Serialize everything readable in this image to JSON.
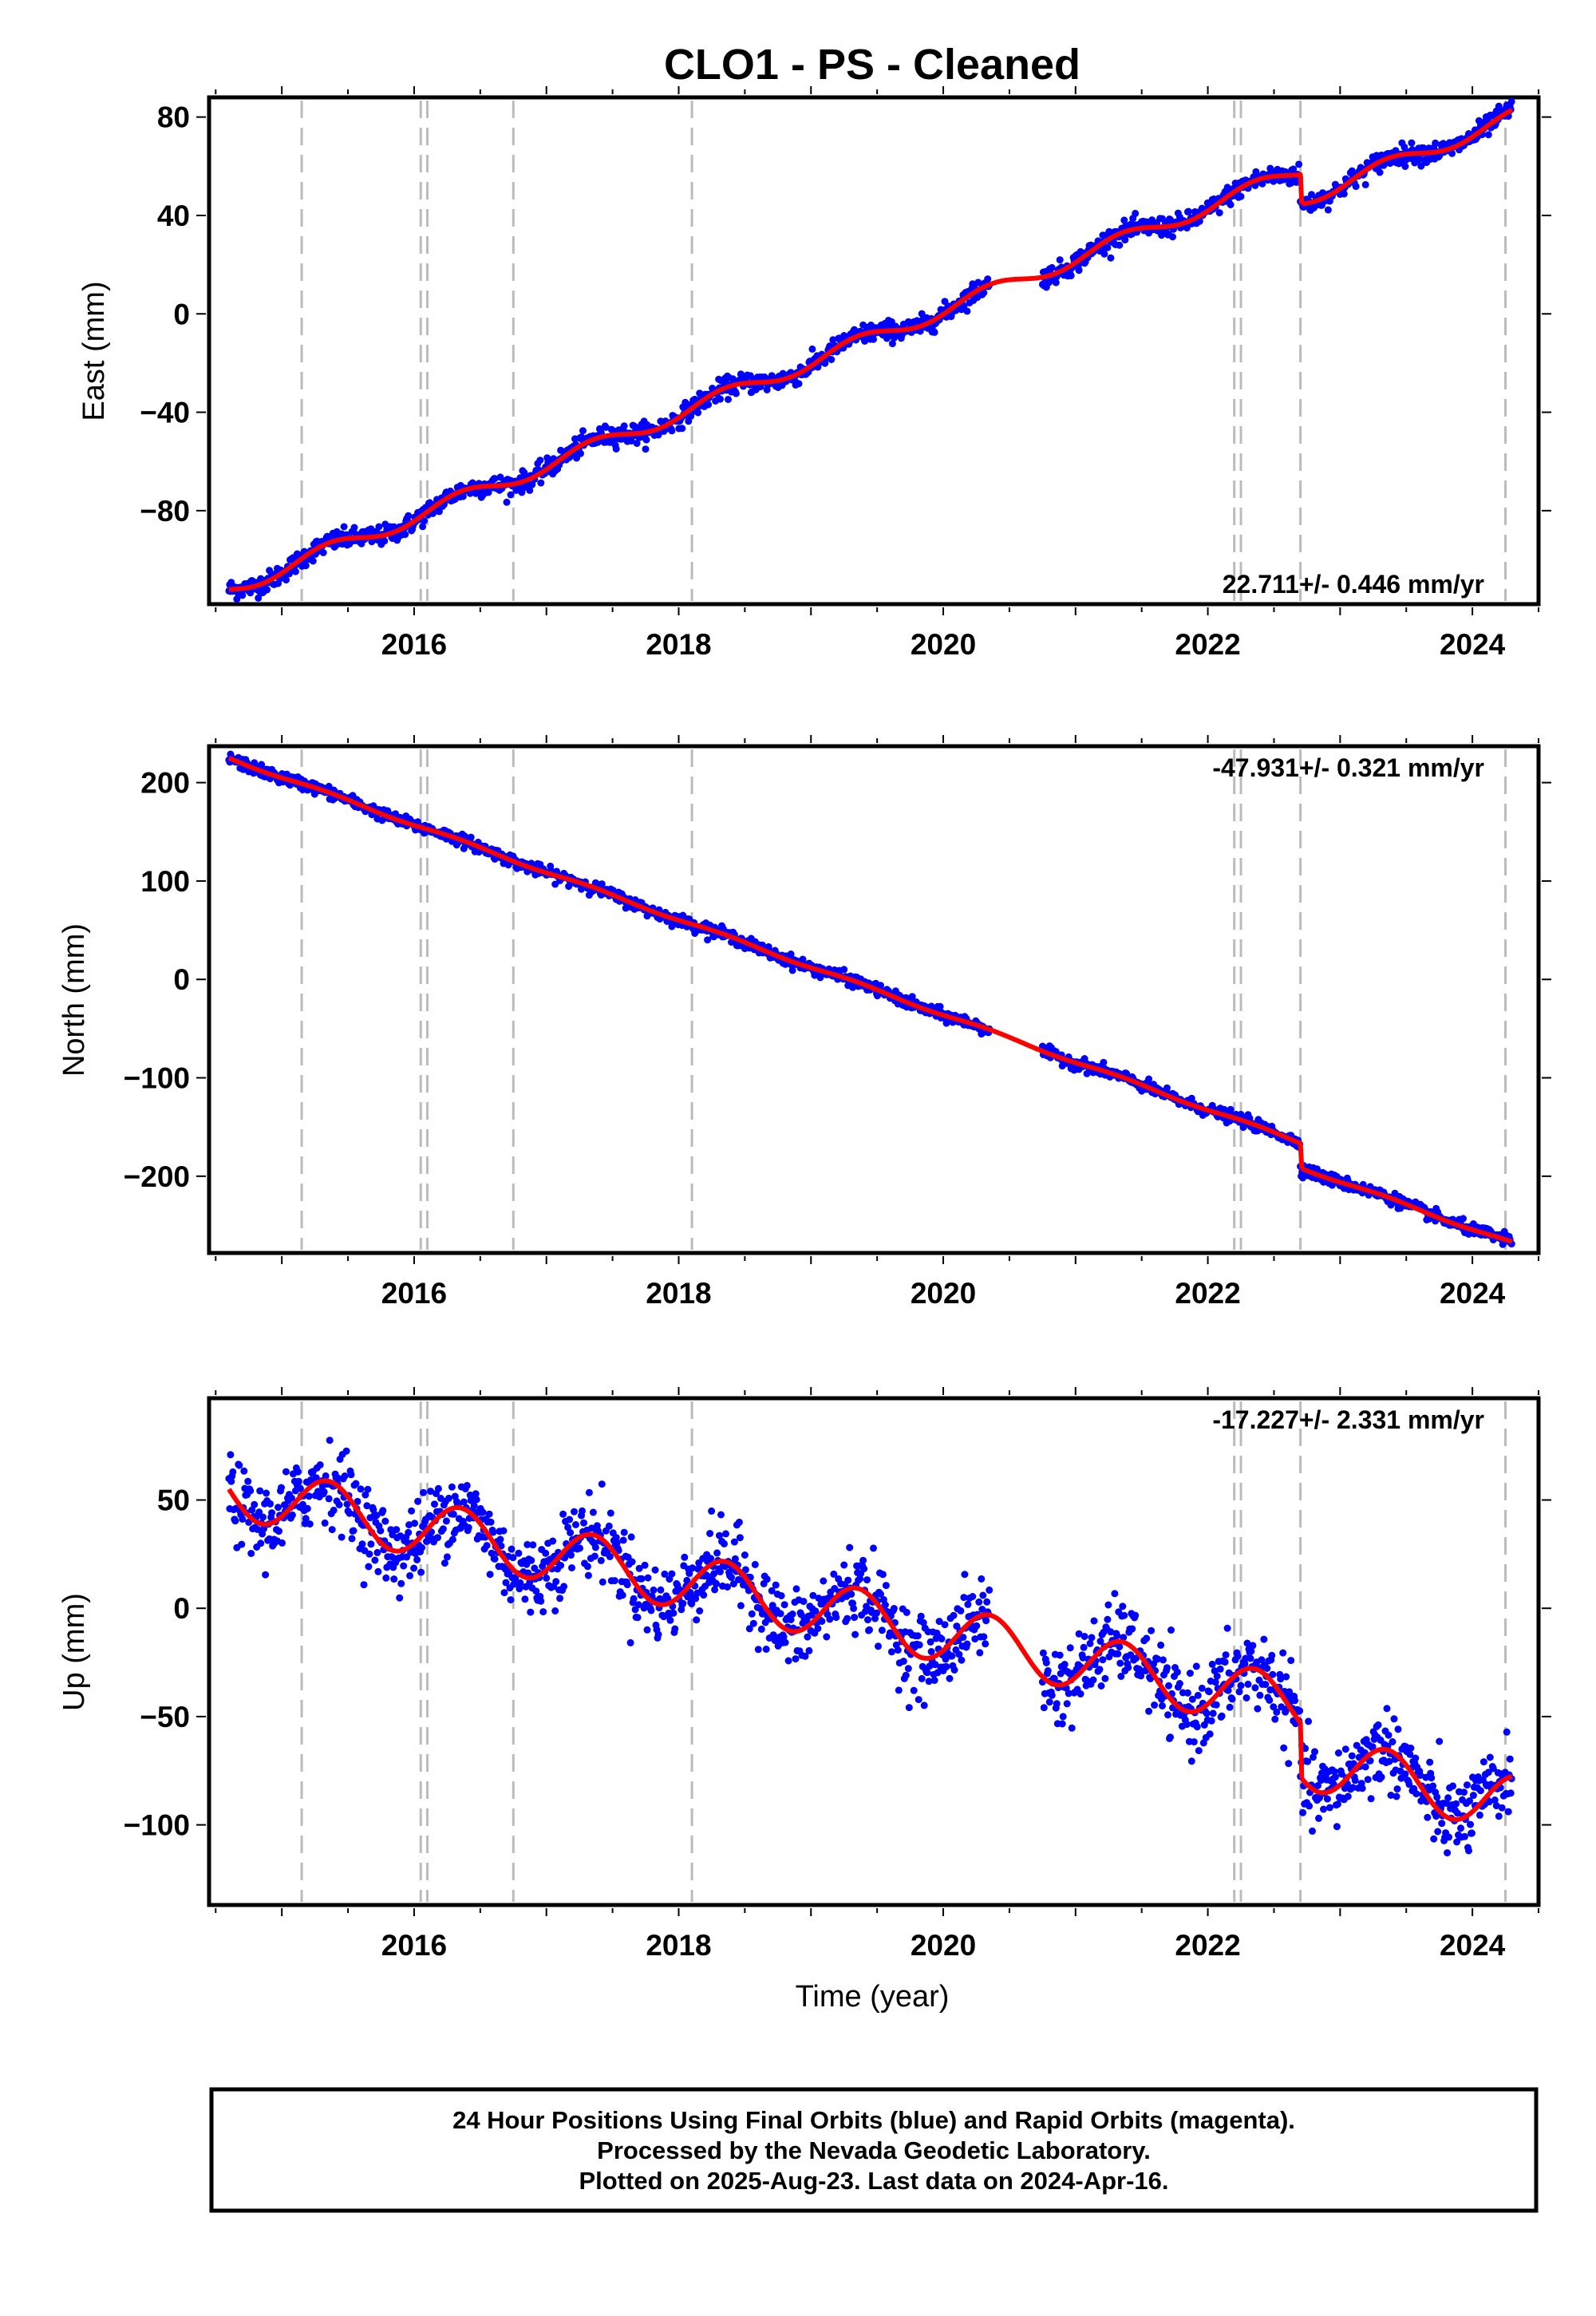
{
  "chart_data": [
    {
      "type": "scatter",
      "title": "CLO1  - PS - Cleaned",
      "ylabel": "East (mm)",
      "xlabel": "",
      "xlim": [
        2014.45,
        2024.5
      ],
      "ylim": [
        -118,
        88
      ],
      "xticks": [
        2016,
        2018,
        2020,
        2022,
        2024
      ],
      "yticks": [
        80,
        40,
        0,
        -40,
        -80
      ],
      "grid": false,
      "rate_label": "22.711+/- 0.446 mm/yr",
      "rate_label_position": "bottom-right",
      "dashed_lines_x": [
        2015.15,
        2016.05,
        2016.1,
        2016.75,
        2018.1,
        2022.2,
        2022.25,
        2022.7,
        2024.25
      ],
      "trend": {
        "start": 2014.6,
        "end": 2024.3,
        "y_start": -112,
        "y_end": 80,
        "rate": 22.711,
        "seasonal_amplitude": 3,
        "offsets": [
          {
            "x": 2022.7,
            "dy": -12
          }
        ]
      },
      "gaps": [
        [
          2020.35,
          2020.75
        ]
      ],
      "noise": 2.0,
      "point_color": "#0000ff",
      "line_color": "#ff0000"
    },
    {
      "type": "scatter",
      "title": "",
      "ylabel": "North (mm)",
      "xlabel": "",
      "xlim": [
        2014.45,
        2024.5
      ],
      "ylim": [
        -278,
        237
      ],
      "xticks": [
        2016,
        2018,
        2020,
        2022,
        2024
      ],
      "yticks": [
        200,
        100,
        0,
        -100,
        -200
      ],
      "grid": false,
      "rate_label": "-47.931+/- 0.321 mm/yr",
      "rate_label_position": "top-right",
      "dashed_lines_x": [
        2015.15,
        2016.05,
        2016.1,
        2016.75,
        2018.1,
        2022.2,
        2022.25,
        2022.7,
        2024.25
      ],
      "trend": {
        "start": 2014.6,
        "end": 2024.3,
        "y_start": 225,
        "y_end": -268,
        "rate": -47.931,
        "seasonal_amplitude": 1.5,
        "offsets": [
          {
            "x": 2022.7,
            "dy": -25
          }
        ]
      },
      "gaps": [
        [
          2020.35,
          2020.75
        ]
      ],
      "noise": 3.0,
      "point_color": "#0000ff",
      "line_color": "#ff0000"
    },
    {
      "type": "scatter",
      "title": "",
      "ylabel": "Up (mm)",
      "xlabel": "Time (year)",
      "xlim": [
        2014.45,
        2024.5
      ],
      "ylim": [
        -137,
        97
      ],
      "xticks": [
        2016,
        2018,
        2020,
        2022,
        2024
      ],
      "yticks": [
        50,
        0,
        -50,
        -100
      ],
      "grid": false,
      "rate_label": "-17.227+/- 2.331 mm/yr",
      "rate_label_position": "top-right",
      "dashed_lines_x": [
        2015.15,
        2016.05,
        2016.1,
        2016.75,
        2018.1,
        2022.2,
        2022.25,
        2022.7,
        2024.25
      ],
      "trend": {
        "start": 2014.6,
        "end": 2024.3,
        "y_start": 55,
        "y_end": -90,
        "rate": -17.227,
        "seasonal_amplitude": 13,
        "offsets": [
          {
            "x": 2022.7,
            "dy": -25
          }
        ]
      },
      "gaps": [
        [
          2020.35,
          2020.75
        ]
      ],
      "noise": 9.0,
      "point_color": "#0000ff",
      "line_color": "#ff0000"
    }
  ],
  "footer": {
    "line1": "24 Hour Positions Using Final Orbits (blue) and Rapid Orbits (magenta).",
    "line2": "Processed by the Nevada Geodetic Laboratory.",
    "line3": "Plotted on 2025-Aug-23. Last data on 2024-Apr-16."
  }
}
